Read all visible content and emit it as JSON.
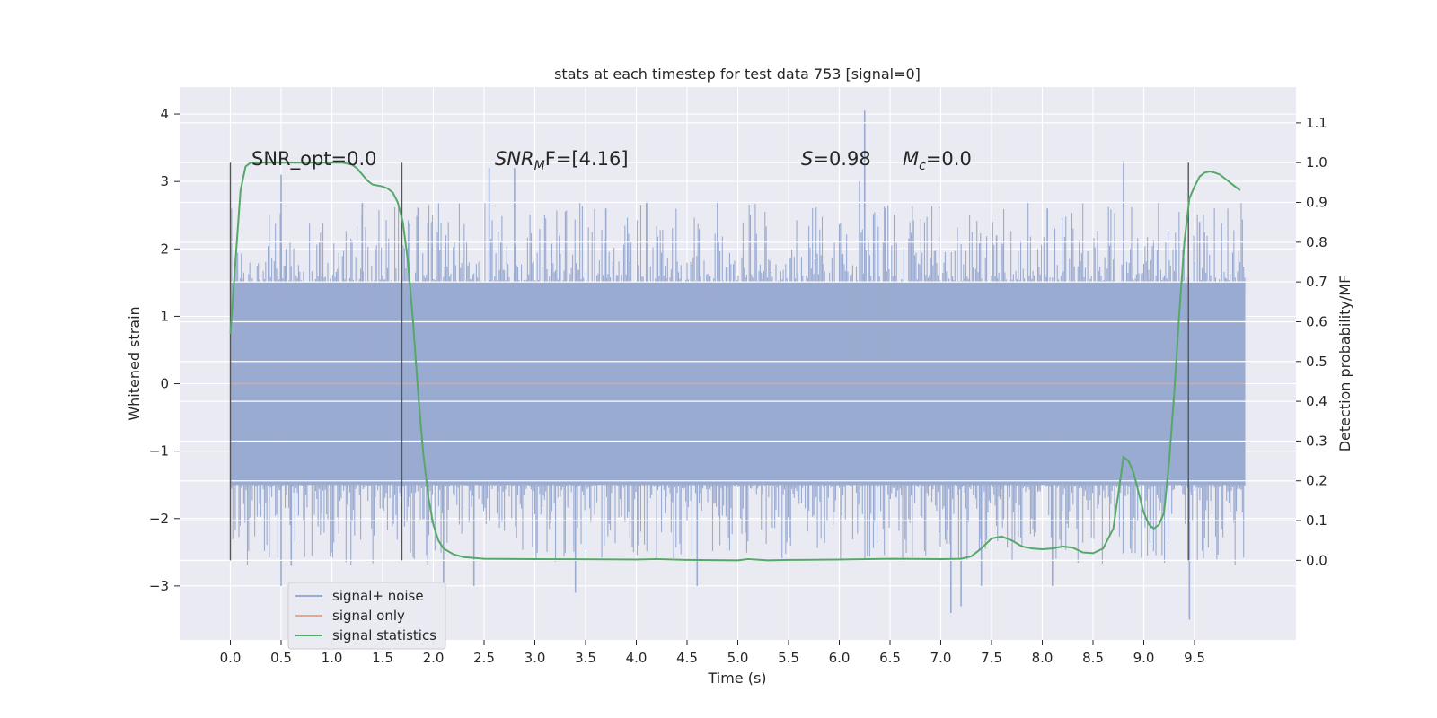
{
  "chart_data": {
    "type": "line",
    "title": "stats at each timestep for test data 753 [signal=0]",
    "xlabel": "Time (s)",
    "ylabel": "Whitened strain",
    "y2label": "Detection probability/MF",
    "xlim": [
      -0.5,
      10.5
    ],
    "ylim": [
      -3.8,
      4.4
    ],
    "y2lim": [
      -0.2,
      1.19
    ],
    "x_ticks": [
      "0.0",
      "0.5",
      "1.0",
      "1.5",
      "2.0",
      "2.5",
      "3.0",
      "3.5",
      "4.0",
      "4.5",
      "5.0",
      "5.5",
      "6.0",
      "6.5",
      "7.0",
      "7.5",
      "8.0",
      "8.5",
      "9.0",
      "9.5"
    ],
    "y_ticks": [
      "4",
      "3",
      "2",
      "1",
      "0",
      "−1",
      "−2",
      "−3"
    ],
    "y2_ticks": [
      "1.1",
      "1.0",
      "0.9",
      "0.8",
      "0.7",
      "0.6",
      "0.5",
      "0.4",
      "0.3",
      "0.2",
      "0.1",
      "0.0"
    ],
    "grid": true,
    "legend_position": "lower-left",
    "annotations": {
      "snr_opt": "SNR_opt=0.0",
      "snr_mf_main": "SNR",
      "snr_mf_sub": "M",
      "snr_mf_tail": "F=[4.16]",
      "s_var": "S",
      "s_val": "=0.98",
      "mc_var": "M",
      "mc_sub": "c",
      "mc_val": "=0.0"
    },
    "vertical_markers": [
      0.0,
      1.69,
      9.44
    ],
    "series": [
      {
        "name": "signal+ noise",
        "color": "#9aabd1",
        "x_range": [
          0.0,
          10.0
        ],
        "band": [
          -1.5,
          1.5
        ],
        "spikes_up": [
          [
            0.5,
            3.1
          ],
          [
            0.55,
            2.0
          ],
          [
            1.3,
            2.7
          ],
          [
            1.85,
            2.6
          ],
          [
            2.55,
            3.2
          ],
          [
            2.8,
            3.2
          ],
          [
            3.7,
            2.6
          ],
          [
            4.1,
            2.7
          ],
          [
            4.8,
            2.7
          ],
          [
            6.2,
            3.0
          ],
          [
            6.25,
            4.05
          ],
          [
            6.45,
            2.6
          ],
          [
            7.55,
            2.2
          ],
          [
            8.05,
            2.6
          ],
          [
            8.8,
            3.3
          ],
          [
            9.55,
            2.4
          ]
        ],
        "spikes_down": [
          [
            0.5,
            -3.0
          ],
          [
            0.6,
            -2.7
          ],
          [
            2.1,
            -3.0
          ],
          [
            2.4,
            -3.0
          ],
          [
            3.4,
            -3.1
          ],
          [
            4.6,
            -3.0
          ],
          [
            7.1,
            -3.4
          ],
          [
            7.2,
            -3.3
          ],
          [
            7.4,
            -3.0
          ],
          [
            8.1,
            -3.0
          ],
          [
            9.45,
            -3.5
          ]
        ]
      },
      {
        "name": "signal only",
        "color": "#e4a98c",
        "x": [
          0.0,
          10.0
        ],
        "y": [
          0.0,
          0.0
        ]
      },
      {
        "name": "signal statistics",
        "color": "#55a868",
        "axis": "right",
        "x": [
          0.0,
          0.05,
          0.1,
          0.15,
          0.2,
          0.3,
          0.5,
          0.8,
          1.0,
          1.1,
          1.2,
          1.25,
          1.3,
          1.35,
          1.4,
          1.5,
          1.55,
          1.6,
          1.65,
          1.7,
          1.75,
          1.8,
          1.85,
          1.9,
          1.95,
          2.0,
          2.05,
          2.1,
          2.2,
          2.3,
          2.5,
          3.0,
          4.0,
          4.2,
          4.5,
          5.0,
          5.1,
          5.3,
          5.5,
          6.0,
          6.5,
          7.0,
          7.2,
          7.3,
          7.4,
          7.5,
          7.6,
          7.7,
          7.8,
          7.9,
          8.0,
          8.1,
          8.2,
          8.3,
          8.4,
          8.5,
          8.6,
          8.7,
          8.75,
          8.8,
          8.85,
          8.9,
          8.95,
          9.0,
          9.05,
          9.1,
          9.15,
          9.2,
          9.25,
          9.3,
          9.35,
          9.4,
          9.45,
          9.5,
          9.55,
          9.6,
          9.65,
          9.7,
          9.75,
          9.8,
          9.9,
          9.95
        ],
        "y": [
          0.57,
          0.75,
          0.93,
          0.99,
          1.0,
          1.0,
          1.0,
          1.0,
          1.0,
          1.0,
          0.995,
          0.985,
          0.97,
          0.955,
          0.945,
          0.94,
          0.935,
          0.925,
          0.9,
          0.85,
          0.75,
          0.6,
          0.42,
          0.27,
          0.16,
          0.09,
          0.05,
          0.03,
          0.015,
          0.008,
          0.004,
          0.003,
          0.002,
          0.003,
          0.001,
          0.0,
          0.003,
          0.0,
          0.001,
          0.002,
          0.004,
          0.003,
          0.004,
          0.01,
          0.03,
          0.055,
          0.06,
          0.05,
          0.035,
          0.03,
          0.028,
          0.03,
          0.035,
          0.032,
          0.02,
          0.018,
          0.03,
          0.08,
          0.17,
          0.26,
          0.25,
          0.22,
          0.17,
          0.12,
          0.09,
          0.08,
          0.09,
          0.12,
          0.25,
          0.42,
          0.62,
          0.8,
          0.91,
          0.94,
          0.965,
          0.975,
          0.978,
          0.975,
          0.97,
          0.96,
          0.94,
          0.93
        ]
      }
    ]
  }
}
